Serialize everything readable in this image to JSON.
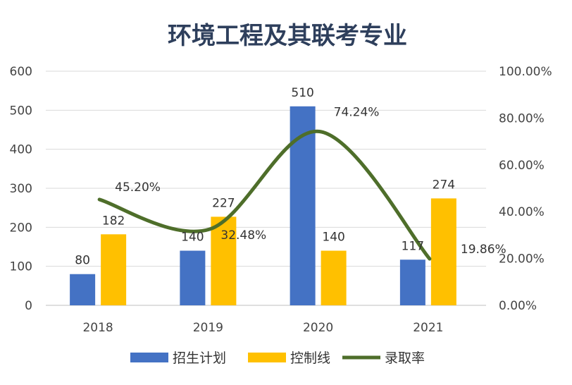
{
  "chart_data": {
    "type": "bar+line",
    "title": "环境工程及其联考专业",
    "categories": [
      "2018",
      "2019",
      "2020",
      "2021"
    ],
    "series": [
      {
        "name": "招生计划",
        "type": "bar",
        "axis": "left",
        "color": "#4472c4",
        "values": [
          80,
          140,
          510,
          117
        ],
        "labels": [
          "80",
          "140",
          "510",
          "117"
        ]
      },
      {
        "name": "控制线",
        "type": "bar",
        "axis": "left",
        "color": "#ffc000",
        "values": [
          182,
          227,
          140,
          274
        ],
        "labels": [
          "182",
          "227",
          "140",
          "274"
        ]
      },
      {
        "name": "录取率",
        "type": "line",
        "smooth": true,
        "axis": "right",
        "color": "#4e6e2a",
        "values": [
          45.2,
          32.48,
          74.24,
          19.86
        ],
        "labels": [
          "45.20%",
          "32.48%",
          "74.24%",
          "19.86%"
        ]
      }
    ],
    "ylim": [
      0,
      600
    ],
    "yticks": [
      "0",
      "100",
      "200",
      "300",
      "400",
      "500",
      "600"
    ],
    "y2lim": [
      0,
      100
    ],
    "y2ticks": [
      "0.00%",
      "20.00%",
      "40.00%",
      "60.00%",
      "80.00%",
      "100.00%"
    ],
    "grid": true,
    "legend": "bottom"
  }
}
